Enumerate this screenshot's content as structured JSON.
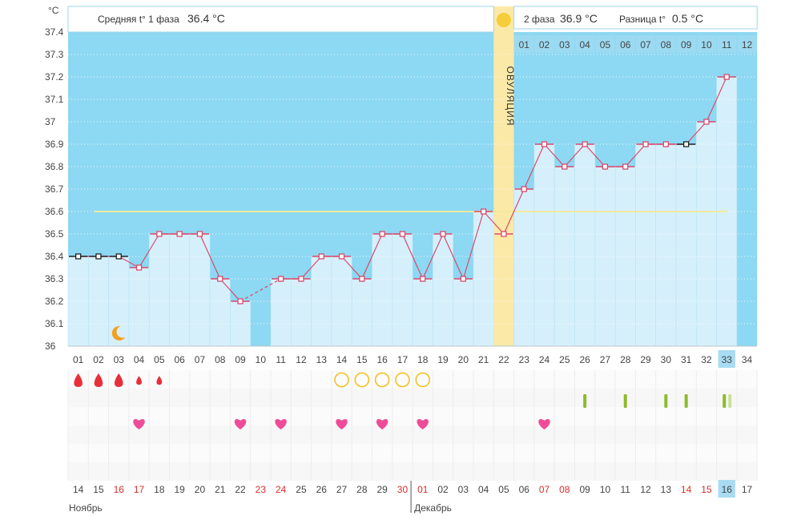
{
  "unit": "°C",
  "header": {
    "phase1_label": "Средняя t° 1 фаза",
    "phase1_value": "36.4 °C",
    "phase2_label": "2 фаза",
    "phase2_value": "36.9 °C",
    "diff_label": "Разница t°",
    "diff_value": "0.5 °C"
  },
  "ovulation_label": "ОВУЛЯЦИЯ",
  "months": {
    "first": "Ноябрь",
    "second": "Декабрь"
  },
  "colors": {
    "sky": "#8dd8f2",
    "bar": "#d6f0fb",
    "ovulation": "#fbe9a8",
    "line": "#d94a6c",
    "avg": "#f3e9a0",
    "hl": "#a9dcf2",
    "drop": "#e8303a",
    "heart": "#ee4c98",
    "ring": "#f5c020",
    "mark_green": "#8dba2c",
    "mark_light": "#c7e39a",
    "red_text": "#e02d2d"
  },
  "chart_data": {
    "type": "line",
    "title": "",
    "ylabel": "°C",
    "ylim": [
      36,
      37.4
    ],
    "yticks": [
      "37.4",
      "37.3",
      "37.2",
      "37.1",
      "37",
      "36.9",
      "36.8",
      "36.7",
      "36.6",
      "36.5",
      "36.4",
      "36.3",
      "36.2",
      "36.1",
      "36"
    ],
    "cycle_days": [
      "01",
      "02",
      "03",
      "04",
      "05",
      "06",
      "07",
      "08",
      "09",
      "10",
      "11",
      "12",
      "13",
      "14",
      "15",
      "16",
      "17",
      "18",
      "19",
      "20",
      "21",
      "22",
      "23",
      "24",
      "25",
      "26",
      "27",
      "28",
      "29",
      "30",
      "31",
      "32",
      "33",
      "34"
    ],
    "dates": [
      "14",
      "15",
      "16",
      "17",
      "18",
      "19",
      "20",
      "21",
      "22",
      "23",
      "24",
      "25",
      "26",
      "27",
      "28",
      "29",
      "30",
      "01",
      "02",
      "03",
      "04",
      "05",
      "06",
      "07",
      "08",
      "09",
      "10",
      "11",
      "12",
      "13",
      "14",
      "15",
      "16",
      "17"
    ],
    "weekend_dates": [
      2,
      3,
      9,
      10,
      16,
      17,
      23,
      24,
      30,
      31
    ],
    "today_index": 32,
    "phase2_day_numbers": [
      "01",
      "02",
      "03",
      "04",
      "05",
      "06",
      "07",
      "08",
      "09",
      "10",
      "11",
      "12"
    ],
    "ovulation_day_index": 21,
    "cover_line": 36.6,
    "temperatures": [
      36.4,
      36.4,
      36.4,
      36.35,
      36.5,
      36.5,
      36.5,
      36.3,
      36.2,
      null,
      36.3,
      36.3,
      36.4,
      36.4,
      36.3,
      36.5,
      36.5,
      36.3,
      36.5,
      36.3,
      36.6,
      36.5,
      36.7,
      36.9,
      36.8,
      36.9,
      36.8,
      36.8,
      36.9,
      36.9,
      36.9,
      37.0,
      37.2,
      null
    ],
    "marker_styles": [
      "dark",
      "dark",
      "dark",
      "pink",
      "pink",
      "pink",
      "pink",
      "pink",
      "pink",
      "none",
      "pink",
      "pink",
      "pink",
      "pink",
      "pink",
      "pink",
      "pink",
      "pink",
      "pink",
      "pink",
      "pink",
      "pink",
      "pink",
      "pink",
      "pink",
      "pink",
      "pink",
      "pink",
      "pink",
      "pink",
      "dark",
      "pink",
      "pink",
      "none"
    ],
    "dashed_segment_from": 8,
    "dashed_segment_to": 10,
    "bleeding_days": [
      0,
      1,
      2,
      3,
      4
    ],
    "bleeding_sizes": [
      "large",
      "large",
      "large",
      "small",
      "small"
    ],
    "ring_days": [
      13,
      14,
      15,
      16,
      17
    ],
    "heart_days": [
      3,
      8,
      10,
      13,
      15,
      17,
      23
    ],
    "green_mark_days": [
      25,
      27,
      29,
      30,
      32
    ],
    "light_mark_days": [
      32
    ],
    "moon_day": 2
  }
}
